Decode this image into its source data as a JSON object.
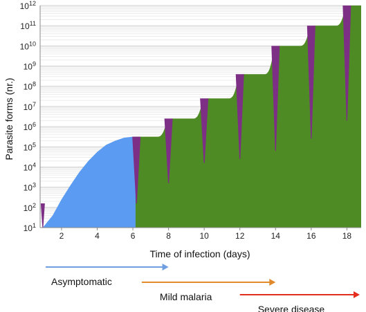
{
  "chart_data": {
    "type": "area",
    "xlabel": "Time of infection (days)",
    "ylabel": "Parasite forms (nr.)",
    "y_scale": "log",
    "xlim": [
      0.8,
      18.8
    ],
    "ylim_exponent": [
      1,
      12
    ],
    "x_ticks": [
      2,
      4,
      6,
      8,
      10,
      12,
      14,
      16,
      18
    ],
    "y_ticks": [
      {
        "base": "10",
        "exp": "1",
        "value": 1
      },
      {
        "base": "10",
        "exp": "2",
        "value": 2
      },
      {
        "base": "10",
        "exp": "3",
        "value": 3
      },
      {
        "base": "10",
        "exp": "4",
        "value": 4
      },
      {
        "base": "10",
        "exp": "5",
        "value": 5
      },
      {
        "base": "10",
        "exp": "6",
        "value": 6
      },
      {
        "base": "10",
        "exp": "7",
        "value": 7
      },
      {
        "base": "10",
        "exp": "8",
        "value": 8
      },
      {
        "base": "10",
        "exp": "9",
        "value": 9
      },
      {
        "base": "10",
        "exp": "10",
        "value": 10
      },
      {
        "base": "10",
        "exp": "11",
        "value": 11
      },
      {
        "base": "10",
        "exp": "12",
        "value": 12
      }
    ],
    "grid": true,
    "liver_stage": {
      "color": "#5b9cf2",
      "points": [
        [
          0.95,
          1.0
        ],
        [
          1.5,
          1.6
        ],
        [
          2.0,
          2.4
        ],
        [
          2.5,
          3.1
        ],
        [
          3.0,
          3.75
        ],
        [
          3.5,
          4.3
        ],
        [
          4.0,
          4.75
        ],
        [
          4.5,
          5.1
        ],
        [
          5.0,
          5.3
        ],
        [
          5.5,
          5.45
        ],
        [
          6.0,
          5.5
        ],
        [
          6.3,
          5.5
        ]
      ]
    },
    "blood_stage": {
      "color": "#4f8b25",
      "plateaus": [
        {
          "start": 6.15,
          "end": 7.4,
          "value": 5.5
        },
        {
          "start": 8.2,
          "end": 9.4,
          "value": 6.4
        },
        {
          "start": 10.2,
          "end": 11.4,
          "value": 7.4
        },
        {
          "start": 12.2,
          "end": 13.4,
          "value": 8.6
        },
        {
          "start": 14.2,
          "end": 15.4,
          "value": 10.0
        },
        {
          "start": 16.2,
          "end": 17.4,
          "value": 11.0
        },
        {
          "start": 18.2,
          "end": 18.8,
          "value": 12.0
        }
      ]
    },
    "rupture_events": {
      "color": "#7d2f86",
      "events": [
        {
          "day": 0.95,
          "top": 2.2,
          "bottom": 1.0
        },
        {
          "day": 6.2,
          "top": 5.5,
          "bottom": 2.2
        },
        {
          "day": 8.0,
          "top": 6.4,
          "bottom": 3.2
        },
        {
          "day": 10.0,
          "top": 7.4,
          "bottom": 4.2
        },
        {
          "day": 12.0,
          "top": 8.6,
          "bottom": 4.4
        },
        {
          "day": 14.0,
          "top": 10.0,
          "bottom": 4.8
        },
        {
          "day": 16.0,
          "top": 11.0,
          "bottom": 5.4
        },
        {
          "day": 18.0,
          "top": 12.0,
          "bottom": 6.3
        }
      ]
    },
    "phases": [
      {
        "label": "Asymptomatic",
        "color": "#6f9fe0",
        "start_day": 0.8,
        "end_day": 8.0
      },
      {
        "label": "Mild malaria",
        "color": "#e08a2c",
        "start_day": 6.5,
        "end_day": 14.0
      },
      {
        "label": "Severe disease",
        "color": "#e52d1f",
        "start_day": 12.0,
        "end_day": 18.8
      }
    ]
  }
}
